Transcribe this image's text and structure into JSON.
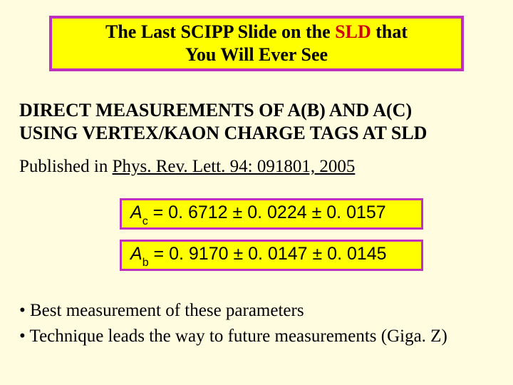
{
  "title": {
    "part1": "The Last SCIPP Slide on the ",
    "sld": "SLD",
    "part2": " that",
    "line2": "You Will Ever See"
  },
  "heading": {
    "line1": "DIRECT MEASUREMENTS OF A(B) AND A(C)",
    "line2": "USING VERTEX/KAON CHARGE TAGS AT SLD"
  },
  "publication": {
    "prefix": "Published in ",
    "ref": "Phys. Rev. Lett. 94: 091801, 2005"
  },
  "results": {
    "ac": {
      "symbol": "A",
      "sub": "c",
      "eq": " = 0. 6712 ",
      "pm1": "±",
      "v1": " 0. 0224 ",
      "pm2": "±",
      "v2": " 0. 0157"
    },
    "ab": {
      "symbol": "A",
      "sub": "b",
      "eq": " = 0. 9170 ",
      "pm1": "±",
      "v1": " 0. 0147 ",
      "pm2": "±",
      "v2": " 0. 0145"
    }
  },
  "bullets": {
    "b1": "• Best measurement of these parameters",
    "b2": "• Technique leads the way to future measurements (Giga. Z)"
  },
  "colors": {
    "background": "#fffcdf",
    "box_fill": "#ffff00",
    "box_border": "#c030c0",
    "sld_red": "#d00000"
  }
}
